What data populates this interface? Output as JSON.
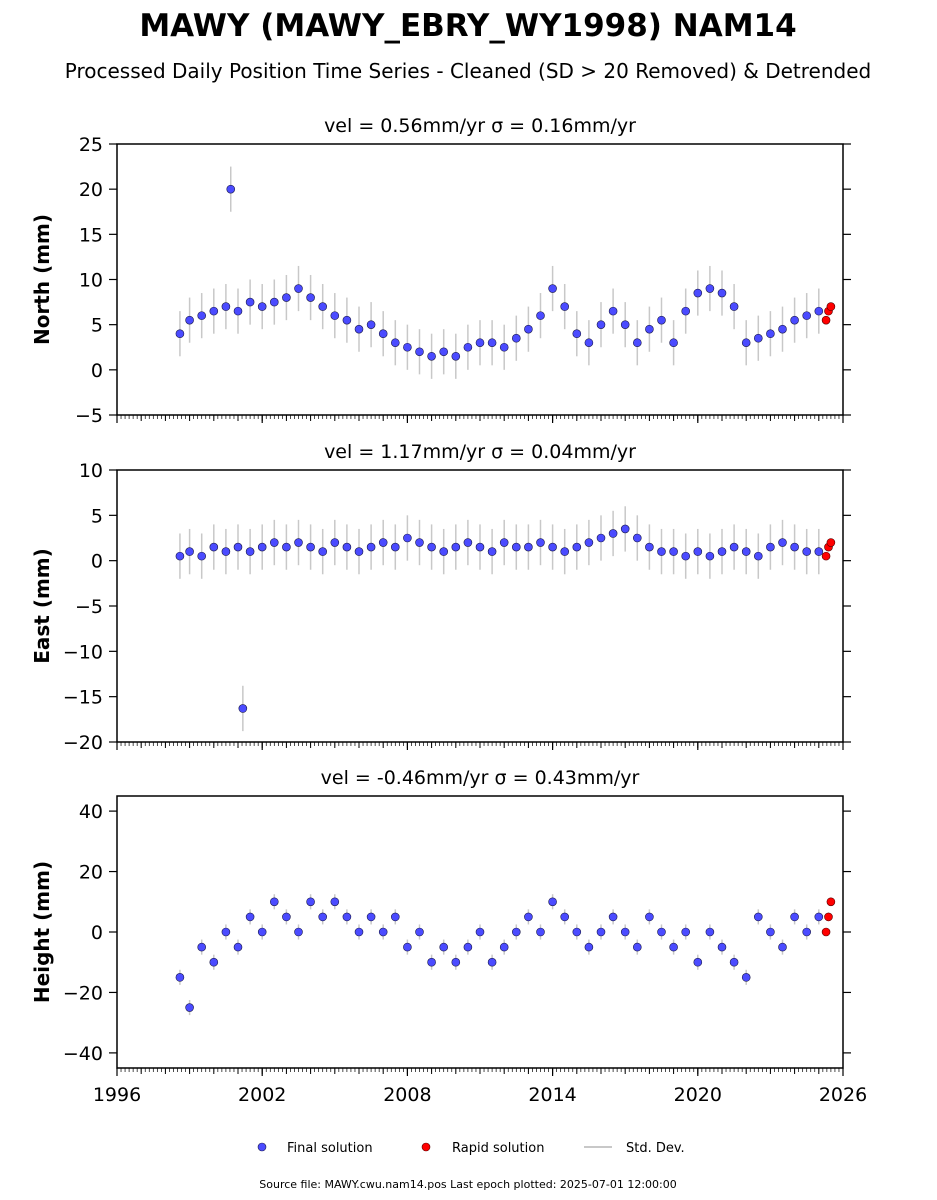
{
  "figure": {
    "title": "MAWY (MAWY_EBRY_WY1998) NAM14",
    "subtitle": "Processed Daily Position Time Series - Cleaned (SD > 20 Removed) & Detrended",
    "footer": "Source file: MAWY.cwu.nam14.pos  Last epoch plotted: 2025-07-01 12:00:00",
    "colors": {
      "final": "#4b4bff",
      "final_edge": "#1a1a4a",
      "rapid": "#ff0000",
      "stddev": "#c8c8c8"
    }
  },
  "legend": {
    "final": "Final solution",
    "rapid": "Rapid solution",
    "stddev": "Std. Dev."
  },
  "chart_data": [
    {
      "type": "scatter",
      "title": "vel = 0.56mm/yr   σ = 0.16mm/yr",
      "ylabel": "North (mm)",
      "xlabel": "",
      "xlim": [
        1996,
        2026
      ],
      "ylim": [
        -5,
        25
      ],
      "yticks": [
        -5,
        0,
        5,
        10,
        15,
        20,
        25
      ],
      "xticks": [
        1996,
        2002,
        2008,
        2014,
        2020,
        2026
      ],
      "show_xticklabels": false,
      "series": [
        {
          "name": "Final solution",
          "x": [
            1998.6,
            1999.0,
            1999.5,
            2000.0,
            2000.5,
            2000.7,
            2001.0,
            2001.5,
            2002.0,
            2002.5,
            2003.0,
            2003.5,
            2004.0,
            2004.5,
            2005.0,
            2005.5,
            2006.0,
            2006.5,
            2007.0,
            2007.5,
            2008.0,
            2008.5,
            2009.0,
            2009.5,
            2010.0,
            2010.5,
            2011.0,
            2011.5,
            2012.0,
            2012.5,
            2013.0,
            2013.5,
            2014.0,
            2014.5,
            2015.0,
            2015.5,
            2016.0,
            2016.5,
            2017.0,
            2017.5,
            2018.0,
            2018.5,
            2019.0,
            2019.5,
            2020.0,
            2020.5,
            2021.0,
            2021.5,
            2022.0,
            2022.5,
            2023.0,
            2023.5,
            2024.0,
            2024.5,
            2025.0
          ],
          "y": [
            4.0,
            5.5,
            6.0,
            6.5,
            7.0,
            20.0,
            6.5,
            7.5,
            7.0,
            7.5,
            8.0,
            9.0,
            8.0,
            7.0,
            6.0,
            5.5,
            4.5,
            5.0,
            4.0,
            3.0,
            2.5,
            2.0,
            1.5,
            2.0,
            1.5,
            2.5,
            3.0,
            3.0,
            2.5,
            3.5,
            4.5,
            6.0,
            9.0,
            7.0,
            4.0,
            3.0,
            5.0,
            6.5,
            5.0,
            3.0,
            4.5,
            5.5,
            3.0,
            6.5,
            8.5,
            9.0,
            8.5,
            7.0,
            3.0,
            3.5,
            4.0,
            4.5,
            5.5,
            6.0,
            6.5
          ]
        },
        {
          "name": "Rapid solution",
          "x": [
            2025.3,
            2025.4,
            2025.5
          ],
          "y": [
            5.5,
            6.5,
            7.0
          ]
        }
      ]
    },
    {
      "type": "scatter",
      "title": "vel = 1.17mm/yr   σ = 0.04mm/yr",
      "ylabel": "East (mm)",
      "xlabel": "",
      "xlim": [
        1996,
        2026
      ],
      "ylim": [
        -20,
        10
      ],
      "yticks": [
        -20,
        -15,
        -10,
        -5,
        0,
        5,
        10
      ],
      "xticks": [
        1996,
        2002,
        2008,
        2014,
        2020,
        2026
      ],
      "show_xticklabels": false,
      "series": [
        {
          "name": "Final solution",
          "x": [
            1998.6,
            1999.0,
            1999.5,
            2000.0,
            2000.5,
            2001.0,
            2001.5,
            2002.0,
            2002.5,
            2003.0,
            2003.5,
            2004.0,
            2004.5,
            2005.0,
            2005.5,
            2006.0,
            2006.5,
            2007.0,
            2007.5,
            2008.0,
            2008.5,
            2009.0,
            2009.5,
            2010.0,
            2010.5,
            2011.0,
            2011.5,
            2012.0,
            2012.5,
            2013.0,
            2013.5,
            2014.0,
            2014.5,
            2015.0,
            2015.5,
            2016.0,
            2016.5,
            2017.0,
            2017.5,
            2018.0,
            2018.5,
            2019.0,
            2019.5,
            2020.0,
            2020.5,
            2021.0,
            2021.5,
            2022.0,
            2022.5,
            2023.0,
            2023.5,
            2024.0,
            2024.5,
            2025.0,
            2001.2
          ],
          "y": [
            0.5,
            1.0,
            0.5,
            1.5,
            1.0,
            1.5,
            1.0,
            1.5,
            2.0,
            1.5,
            2.0,
            1.5,
            1.0,
            2.0,
            1.5,
            1.0,
            1.5,
            2.0,
            1.5,
            2.5,
            2.0,
            1.5,
            1.0,
            1.5,
            2.0,
            1.5,
            1.0,
            2.0,
            1.5,
            1.5,
            2.0,
            1.5,
            1.0,
            1.5,
            2.0,
            2.5,
            3.0,
            3.5,
            2.5,
            1.5,
            1.0,
            1.0,
            0.5,
            1.0,
            0.5,
            1.0,
            1.5,
            1.0,
            0.5,
            1.5,
            2.0,
            1.5,
            1.0,
            1.0,
            -16.3
          ]
        },
        {
          "name": "Rapid solution",
          "x": [
            2025.3,
            2025.4,
            2025.5
          ],
          "y": [
            0.5,
            1.5,
            2.0
          ]
        }
      ]
    },
    {
      "type": "scatter",
      "title": "vel = -0.46mm/yr   σ = 0.43mm/yr",
      "ylabel": "Height (mm)",
      "xlabel": "",
      "xlim": [
        1996,
        2026
      ],
      "ylim": [
        -45,
        45
      ],
      "yticks": [
        -40,
        -20,
        0,
        20,
        40
      ],
      "xticks": [
        1996,
        2002,
        2008,
        2014,
        2020,
        2026
      ],
      "show_xticklabels": true,
      "series": [
        {
          "name": "Final solution",
          "x": [
            1998.6,
            1999.0,
            1999.5,
            2000.0,
            2000.5,
            2001.0,
            2001.5,
            2002.0,
            2002.5,
            2003.0,
            2003.5,
            2004.0,
            2004.5,
            2005.0,
            2005.5,
            2006.0,
            2006.5,
            2007.0,
            2007.5,
            2008.0,
            2008.5,
            2009.0,
            2009.5,
            2010.0,
            2010.5,
            2011.0,
            2011.5,
            2012.0,
            2012.5,
            2013.0,
            2013.5,
            2014.0,
            2014.5,
            2015.0,
            2015.5,
            2016.0,
            2016.5,
            2017.0,
            2017.5,
            2018.0,
            2018.5,
            2019.0,
            2019.5,
            2020.0,
            2020.5,
            2021.0,
            2021.5,
            2022.0,
            2022.5,
            2023.0,
            2023.5,
            2024.0,
            2024.5,
            2025.0
          ],
          "y": [
            -15.0,
            -25.0,
            -5.0,
            -10.0,
            0.0,
            -5.0,
            5.0,
            0.0,
            10.0,
            5.0,
            0.0,
            10.0,
            5.0,
            10.0,
            5.0,
            0.0,
            5.0,
            0.0,
            5.0,
            -5.0,
            0.0,
            -10.0,
            -5.0,
            -10.0,
            -5.0,
            0.0,
            -10.0,
            -5.0,
            0.0,
            5.0,
            0.0,
            10.0,
            5.0,
            0.0,
            -5.0,
            0.0,
            5.0,
            0.0,
            -5.0,
            5.0,
            0.0,
            -5.0,
            0.0,
            -10.0,
            0.0,
            -5.0,
            -10.0,
            -15.0,
            5.0,
            0.0,
            -5.0,
            5.0,
            0.0,
            5.0
          ]
        },
        {
          "name": "Rapid solution",
          "x": [
            2025.3,
            2025.4,
            2025.5
          ],
          "y": [
            0.0,
            5.0,
            10.0
          ]
        }
      ]
    }
  ]
}
